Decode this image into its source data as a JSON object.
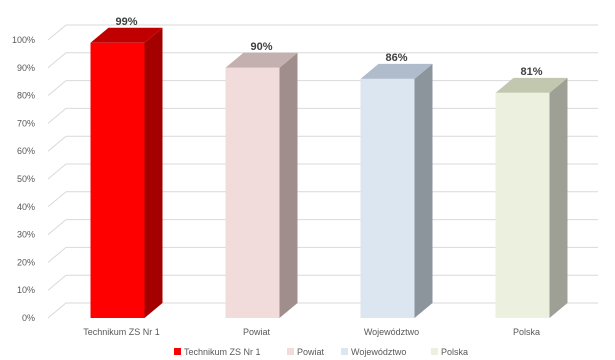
{
  "chart_data": {
    "type": "bar",
    "style": "3d-column",
    "categories": [
      "Technikum ZS Nr 1",
      "Powiat",
      "Województwo",
      "Polska"
    ],
    "values": [
      99,
      90,
      86,
      81
    ],
    "value_labels": [
      "99%",
      "90%",
      "86%",
      "81%"
    ],
    "y_ticks": [
      "0%",
      "10%",
      "20%",
      "30%",
      "40%",
      "50%",
      "60%",
      "70%",
      "80%",
      "90%",
      "100%"
    ],
    "ylim": [
      0,
      100
    ],
    "grid": true,
    "legend_position": "bottom",
    "legend": [
      "Technikum ZS Nr 1",
      "Powiat",
      "Województwo",
      "Polska"
    ],
    "colors": {
      "front": [
        "#ff0000",
        "#f2dcdb",
        "#dce6f1",
        "#ebf1de"
      ],
      "side": [
        "#a50000",
        "#a08e8d",
        "#8d959c",
        "#9ea095"
      ],
      "top": [
        "#c00000",
        "#c4b0af",
        "#b0bccb",
        "#c2c8b0"
      ],
      "gridline": "#d9d9d9",
      "text": "#595959"
    }
  }
}
